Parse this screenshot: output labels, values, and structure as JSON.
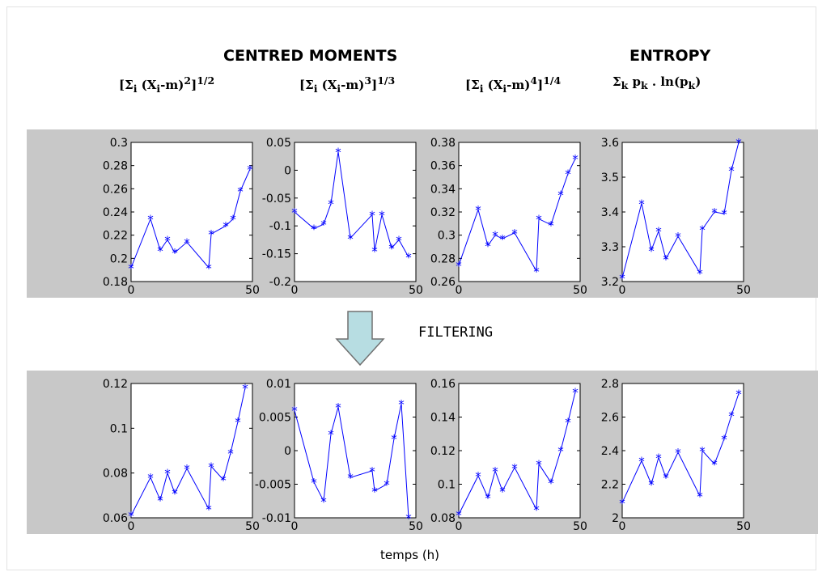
{
  "headings": {
    "centred_moments": "CENTRED   MOMENTS",
    "entropy": "ENTROPY"
  },
  "formulas": [
    {
      "text": "[Σ",
      "sub": "i",
      "mid": " (X",
      "sub2": "i",
      "end": "-m)",
      "pow": "2",
      "close": "]",
      "root": "1/2"
    },
    {
      "text": "[Σ",
      "sub": "i",
      "mid": " (X",
      "sub2": "i",
      "end": "-m)",
      "pow": "3",
      "close": "]",
      "root": "1/3"
    },
    {
      "text": "[Σ",
      "sub": "i",
      "mid": " (X",
      "sub2": "i",
      "end": "-m)",
      "pow": "4",
      "close": "]",
      "root": "1/4"
    }
  ],
  "entropy_formula": {
    "sigma": "Σ",
    "sub": "k",
    "rest": " p",
    "sub2": "k",
    "tail": " . ln(p",
    "sub3": "k",
    "end": ")"
  },
  "filtering_label": "FILTERING",
  "x_axis_label": "temps (h)",
  "colors": {
    "band": "#c8c8c8",
    "series": "#0000ff",
    "arrow_fill": "#b7dde2",
    "arrow_stroke": "#707070"
  },
  "icons": {
    "arrow": "down-arrow-icon"
  },
  "chart_data": [
    {
      "type": "line",
      "row": "raw",
      "metric": "moment-2",
      "marker": "*",
      "x": [
        0,
        8,
        12,
        15,
        18,
        23,
        32,
        33,
        39,
        42,
        45,
        49
      ],
      "y": [
        0.192,
        0.234,
        0.207,
        0.216,
        0.205,
        0.214,
        0.192,
        0.221,
        0.228,
        0.234,
        0.258,
        0.277
      ],
      "xlim": [
        0,
        50
      ],
      "ylim": [
        0.18,
        0.3
      ],
      "xticks": [
        "0",
        "50"
      ],
      "yticks": [
        "0.18",
        "0.2",
        "0.22",
        "0.24",
        "0.26",
        "0.28",
        "0.3"
      ]
    },
    {
      "type": "line",
      "row": "raw",
      "metric": "moment-3",
      "marker": "*",
      "x": [
        0,
        8,
        12,
        15,
        18,
        23,
        32,
        33,
        36,
        40,
        43,
        47
      ],
      "y": [
        -0.075,
        -0.105,
        -0.097,
        -0.06,
        0.033,
        -0.122,
        -0.08,
        -0.145,
        -0.08,
        -0.14,
        -0.125,
        -0.156
      ],
      "xlim": [
        0,
        50
      ],
      "ylim": [
        -0.2,
        0.05
      ],
      "xticks": [
        "0",
        "50"
      ],
      "yticks": [
        "-0.2",
        "-0.15",
        "-0.1",
        "-0.05",
        "0",
        "0.05"
      ]
    },
    {
      "type": "line",
      "row": "raw",
      "metric": "moment-4",
      "marker": "*",
      "x": [
        0,
        8,
        12,
        15,
        18,
        23,
        32,
        33,
        38,
        42,
        45,
        48
      ],
      "y": [
        0.274,
        0.322,
        0.291,
        0.3,
        0.297,
        0.302,
        0.269,
        0.314,
        0.309,
        0.335,
        0.353,
        0.366
      ],
      "xlim": [
        0,
        50
      ],
      "ylim": [
        0.26,
        0.38
      ],
      "xticks": [
        "0",
        "50"
      ],
      "yticks": [
        "0.26",
        "0.28",
        "0.3",
        "0.32",
        "0.34",
        "0.36",
        "0.38"
      ]
    },
    {
      "type": "line",
      "row": "raw",
      "metric": "entropy",
      "marker": "*",
      "x": [
        0,
        8,
        12,
        15,
        18,
        23,
        32,
        33,
        38,
        42,
        45,
        48
      ],
      "y": [
        3.21,
        3.425,
        3.29,
        3.345,
        3.265,
        3.33,
        3.225,
        3.35,
        3.4,
        3.395,
        3.52,
        3.6
      ],
      "xlim": [
        0,
        50
      ],
      "ylim": [
        3.2,
        3.6
      ],
      "xticks": [
        "0",
        "50"
      ],
      "yticks": [
        "3.2",
        "3.3",
        "3.4",
        "3.5",
        "3.6"
      ]
    },
    {
      "type": "line",
      "row": "filtered",
      "metric": "moment-2",
      "marker": "*",
      "x": [
        0,
        8,
        12,
        15,
        18,
        23,
        32,
        33,
        38,
        41,
        44,
        47
      ],
      "y": [
        0.061,
        0.078,
        0.068,
        0.08,
        0.071,
        0.082,
        0.064,
        0.083,
        0.077,
        0.089,
        0.103,
        0.118
      ],
      "xlim": [
        0,
        50
      ],
      "ylim": [
        0.06,
        0.12
      ],
      "xticks": [
        "0",
        "50"
      ],
      "yticks": [
        "0.06",
        "0.08",
        "0.1",
        "0.12"
      ]
    },
    {
      "type": "line",
      "row": "filtered",
      "metric": "moment-3",
      "marker": "*",
      "x": [
        0,
        8,
        12,
        15,
        18,
        23,
        32,
        33,
        38,
        41,
        44,
        47
      ],
      "y": [
        0.006,
        -0.0047,
        -0.0075,
        0.0025,
        0.0065,
        -0.004,
        -0.003,
        -0.006,
        -0.005,
        0.0018,
        0.007,
        -0.01
      ],
      "xlim": [
        0,
        50
      ],
      "ylim": [
        -0.01,
        0.01
      ],
      "xticks": [
        "0",
        "50"
      ],
      "yticks": [
        "-0.01",
        "-0.005",
        "0",
        "0.005",
        "0.01"
      ]
    },
    {
      "type": "line",
      "row": "filtered",
      "metric": "moment-4",
      "marker": "*",
      "x": [
        0,
        8,
        12,
        15,
        18,
        23,
        32,
        33,
        38,
        42,
        45,
        48
      ],
      "y": [
        0.082,
        0.105,
        0.092,
        0.108,
        0.096,
        0.11,
        0.085,
        0.112,
        0.101,
        0.12,
        0.137,
        0.155
      ],
      "xlim": [
        0,
        50
      ],
      "ylim": [
        0.08,
        0.16
      ],
      "xticks": [
        "0",
        "50"
      ],
      "yticks": [
        "0.08",
        "0.1",
        "0.12",
        "0.14",
        "0.16"
      ]
    },
    {
      "type": "line",
      "row": "filtered",
      "metric": "entropy",
      "marker": "*",
      "x": [
        0,
        8,
        12,
        15,
        18,
        23,
        32,
        33,
        38,
        42,
        45,
        48
      ],
      "y": [
        2.09,
        2.34,
        2.2,
        2.36,
        2.24,
        2.39,
        2.13,
        2.4,
        2.32,
        2.47,
        2.61,
        2.74
      ],
      "xlim": [
        0,
        50
      ],
      "ylim": [
        2.0,
        2.8
      ],
      "xticks": [
        "0",
        "50"
      ],
      "yticks": [
        "2",
        "2.2",
        "2.4",
        "2.6",
        "2.8"
      ]
    }
  ]
}
